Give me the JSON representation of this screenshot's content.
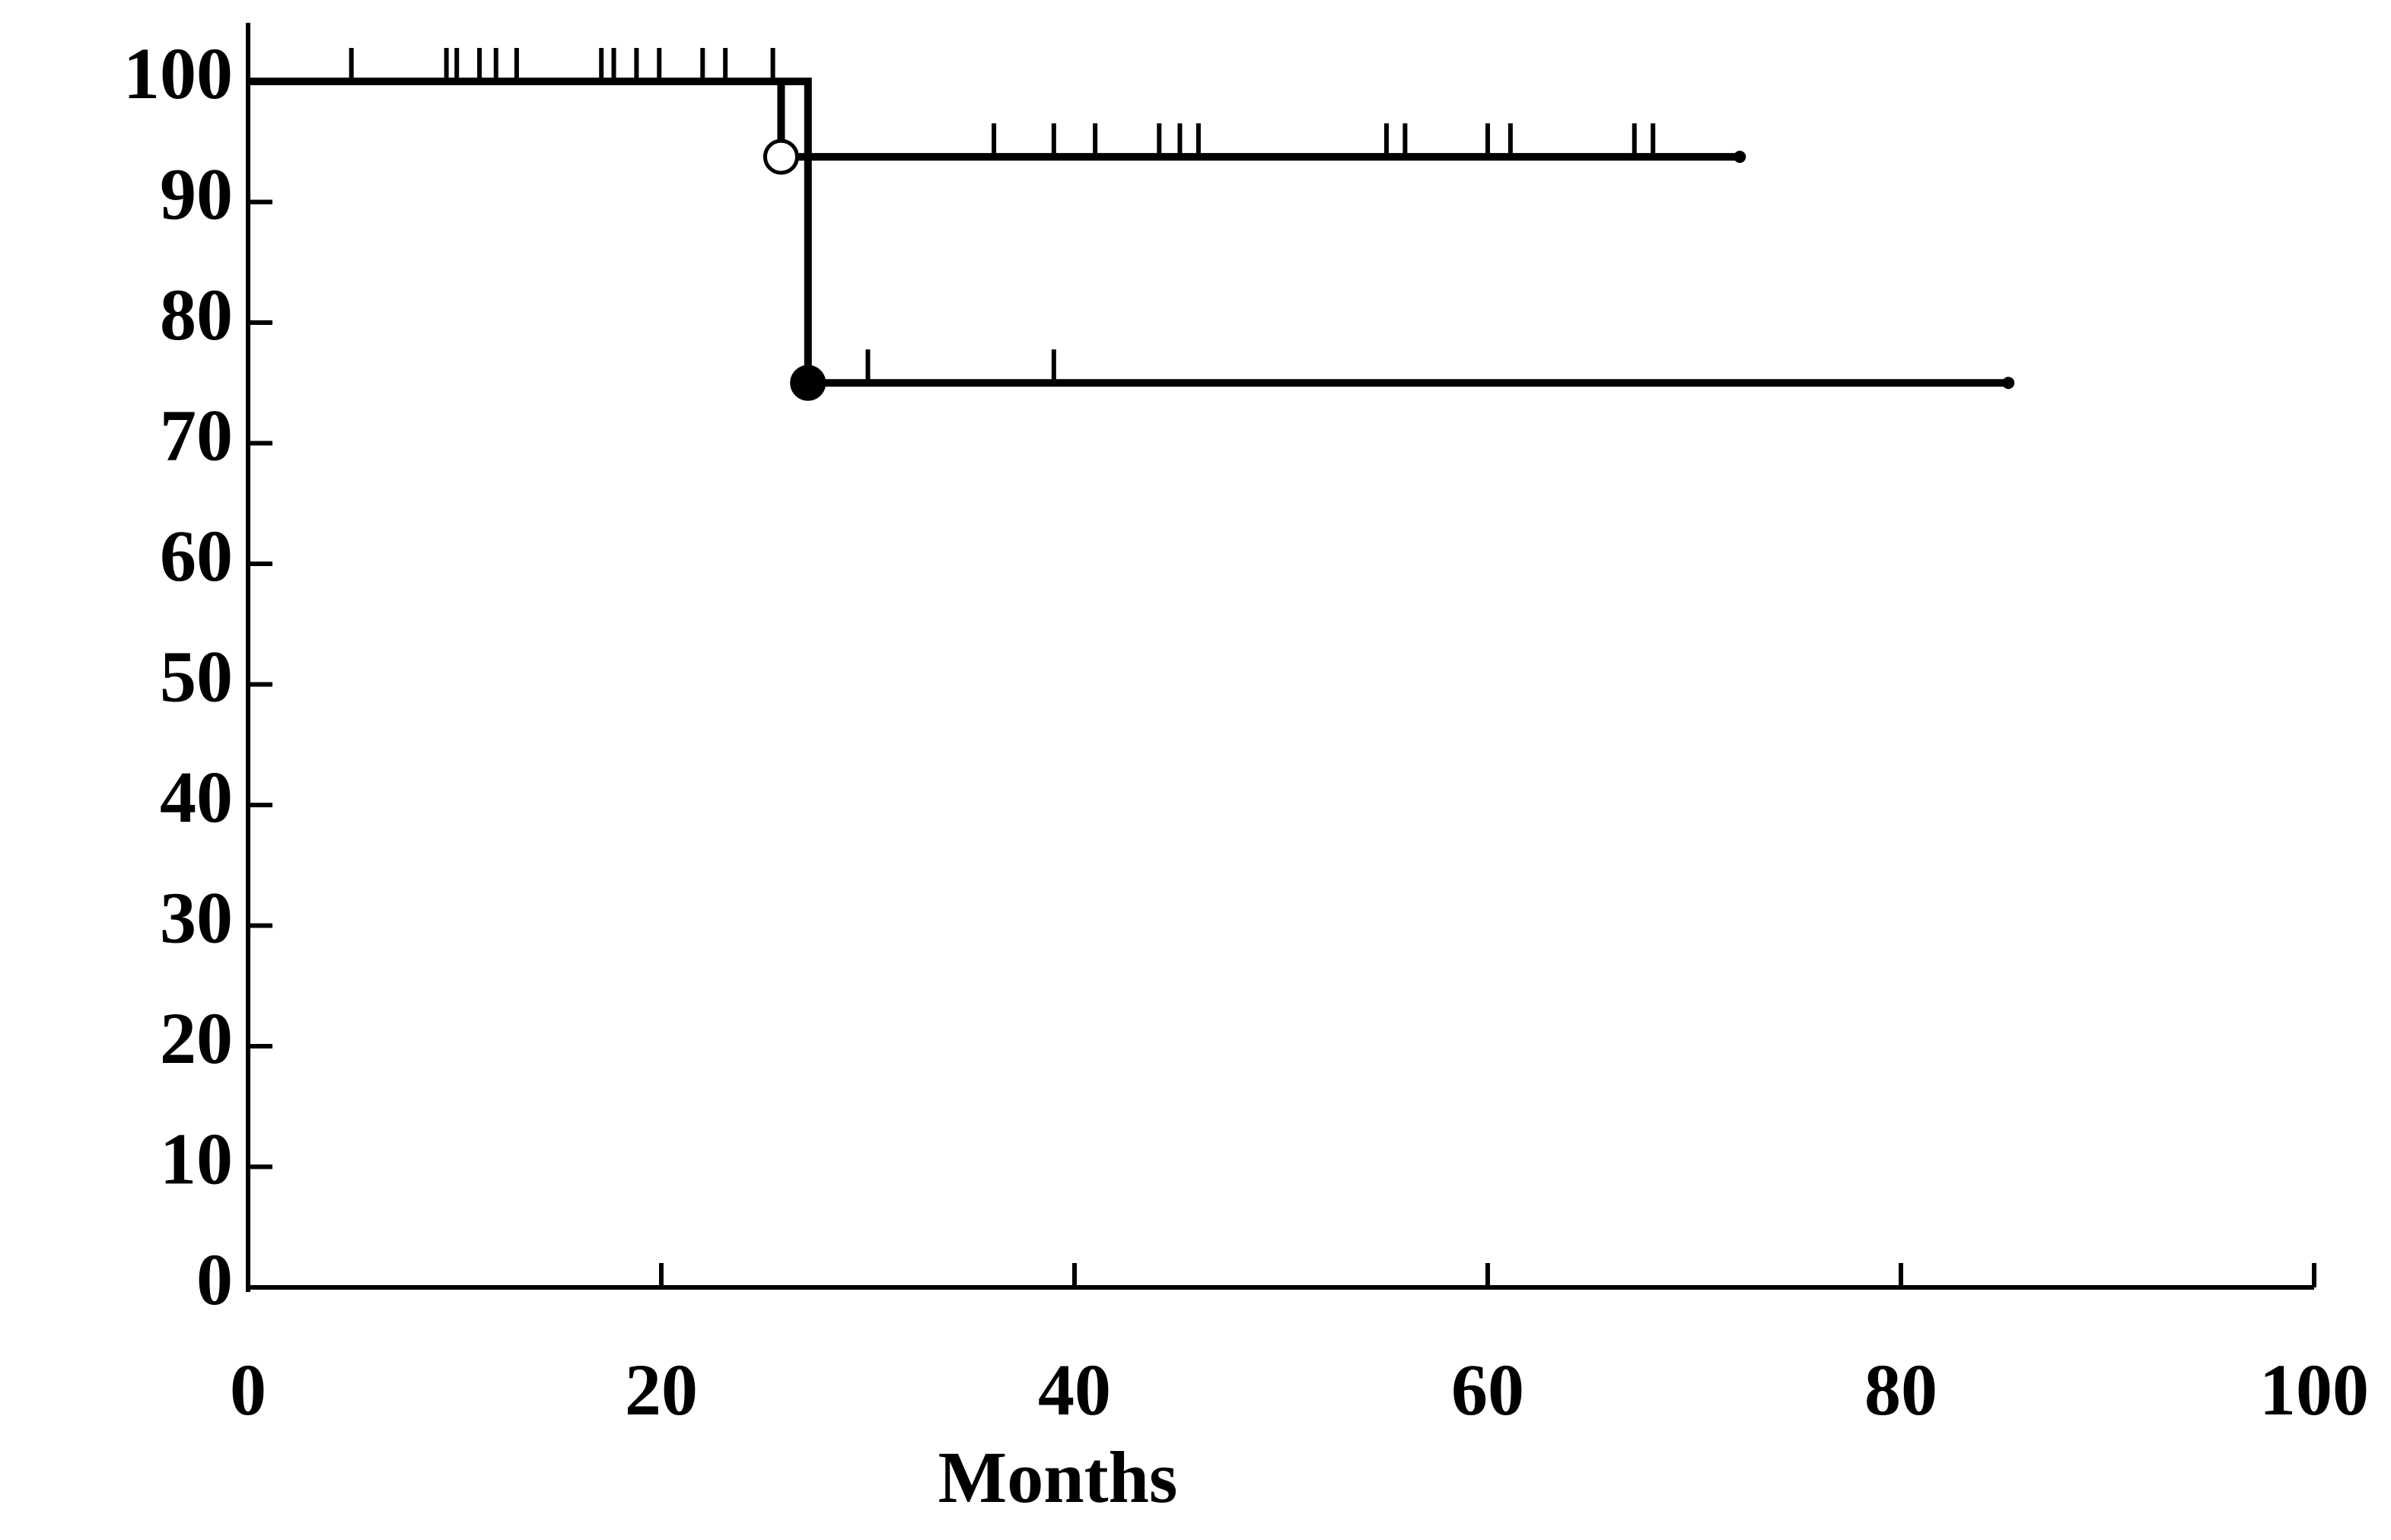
{
  "chart_data": {
    "type": "km",
    "x_label": "Months",
    "xlim": [
      0,
      100
    ],
    "xticks": [
      0,
      20,
      40,
      60,
      80,
      100
    ],
    "ylim": [
      0,
      100
    ],
    "yticks": [
      0,
      10,
      20,
      30,
      40,
      50,
      60,
      70,
      80,
      90,
      100
    ],
    "series": [
      {
        "color": "#000000",
        "marker": "open",
        "x": [
          0,
          25.8,
          72.2
        ],
        "values": [
          100,
          93.75,
          93.75
        ],
        "censor_x": [
          5,
          9.6,
          10.1,
          11.2,
          12,
          13,
          17.1,
          17.7,
          18.8,
          19.9,
          22,
          23.1,
          25.4,
          36.1,
          39,
          41,
          44.1,
          45.1,
          46,
          55.1,
          56,
          60,
          61.1,
          67.1,
          68
        ],
        "censor_values": [
          100,
          100,
          100,
          100,
          100,
          100,
          100,
          100,
          100,
          100,
          100,
          100,
          100,
          93.75,
          93.75,
          93.75,
          93.75,
          93.75,
          93.75,
          93.75,
          93.75,
          93.75,
          93.75,
          93.75,
          93.75
        ]
      },
      {
        "color": "#000000",
        "marker": "filled",
        "x": [
          0,
          27.1,
          85.2
        ],
        "values": [
          100,
          75,
          75
        ],
        "censor_x": [
          30,
          39
        ],
        "censor_values": [
          75,
          75
        ]
      }
    ]
  }
}
